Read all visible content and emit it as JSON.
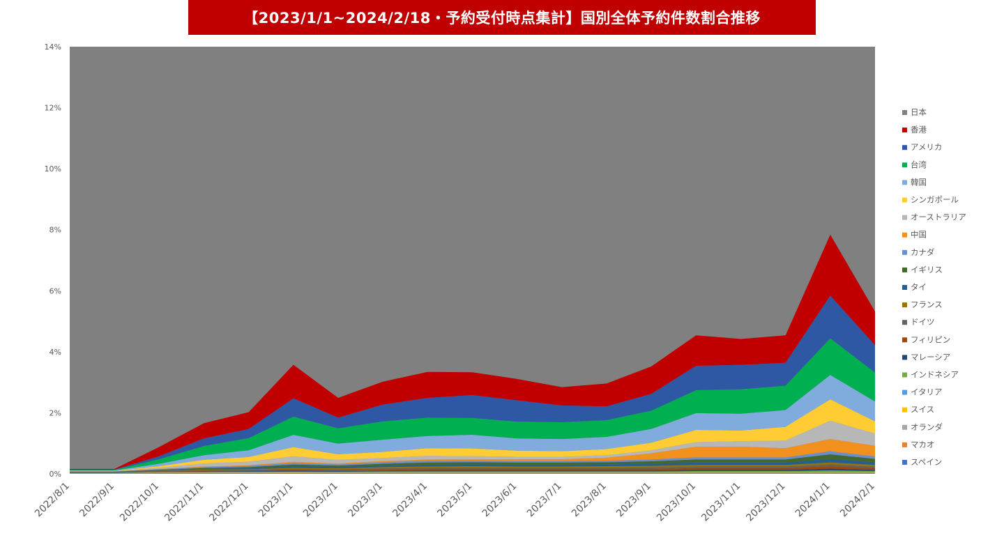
{
  "chart_data": {
    "type": "area",
    "stacked": true,
    "title": "【2023/1/1~2024/2/18・予約受付時点集計】国別全体予約件数割合推移",
    "xlabel": "",
    "ylabel": "",
    "x": [
      "2022/8/1",
      "2022/9/1",
      "2022/10/1",
      "2022/11/1",
      "2022/12/1",
      "2023/1/1",
      "2023/2/1",
      "2023/3/1",
      "2023/4/1",
      "2023/5/1",
      "2023/6/1",
      "2023/7/1",
      "2023/8/1",
      "2023/9/1",
      "2023/10/1",
      "2023/11/1",
      "2023/12/1",
      "2024/1/1",
      "2024/2/1"
    ],
    "ylim": [
      0,
      14
    ],
    "yticks": [
      "0%",
      "2%",
      "4%",
      "6%",
      "8%",
      "10%",
      "12%",
      "14%"
    ],
    "legend_position": "right",
    "grid": false,
    "top_series": {
      "name": "日本",
      "color": "#808080"
    },
    "series": [
      {
        "name": "スペイン",
        "color": "#4472c4",
        "values": [
          0.005,
          0.005,
          0.01,
          0.01,
          0.01,
          0.01,
          0.01,
          0.01,
          0.01,
          0.01,
          0.01,
          0.01,
          0.01,
          0.01,
          0.01,
          0.01,
          0.01,
          0.01,
          0.01
        ]
      },
      {
        "name": "マカオ",
        "color": "#ed7d31",
        "values": [
          0.005,
          0.005,
          0.01,
          0.01,
          0.01,
          0.015,
          0.01,
          0.01,
          0.01,
          0.01,
          0.01,
          0.01,
          0.01,
          0.01,
          0.01,
          0.01,
          0.01,
          0.01,
          0.01
        ]
      },
      {
        "name": "オランダ",
        "color": "#a5a5a5",
        "values": [
          0.005,
          0.005,
          0.01,
          0.01,
          0.01,
          0.01,
          0.01,
          0.01,
          0.01,
          0.01,
          0.01,
          0.01,
          0.01,
          0.01,
          0.01,
          0.01,
          0.01,
          0.01,
          0.01
        ]
      },
      {
        "name": "スイス",
        "color": "#ffc000",
        "values": [
          0.005,
          0.005,
          0.01,
          0.01,
          0.01,
          0.01,
          0.01,
          0.01,
          0.01,
          0.01,
          0.01,
          0.01,
          0.01,
          0.01,
          0.01,
          0.01,
          0.01,
          0.01,
          0.01
        ]
      },
      {
        "name": "イタリア",
        "color": "#5b9bd5",
        "values": [
          0.005,
          0.005,
          0.01,
          0.01,
          0.01,
          0.01,
          0.01,
          0.01,
          0.01,
          0.01,
          0.01,
          0.01,
          0.01,
          0.01,
          0.01,
          0.01,
          0.01,
          0.01,
          0.01
        ]
      },
      {
        "name": "インドネシア",
        "color": "#70ad47",
        "values": [
          0.01,
          0.01,
          0.01,
          0.015,
          0.02,
          0.02,
          0.02,
          0.03,
          0.03,
          0.03,
          0.03,
          0.03,
          0.03,
          0.03,
          0.04,
          0.04,
          0.04,
          0.06,
          0.04
        ]
      },
      {
        "name": "マレーシア",
        "color": "#264478",
        "values": [
          0.01,
          0.01,
          0.01,
          0.015,
          0.02,
          0.03,
          0.02,
          0.02,
          0.03,
          0.03,
          0.03,
          0.03,
          0.03,
          0.03,
          0.04,
          0.04,
          0.04,
          0.06,
          0.04
        ]
      },
      {
        "name": "フィリピン",
        "color": "#9e480e",
        "values": [
          0.005,
          0.005,
          0.01,
          0.02,
          0.02,
          0.03,
          0.03,
          0.04,
          0.05,
          0.05,
          0.05,
          0.05,
          0.05,
          0.05,
          0.06,
          0.06,
          0.06,
          0.08,
          0.06
        ]
      },
      {
        "name": "ドイツ",
        "color": "#636363",
        "values": [
          0.005,
          0.005,
          0.01,
          0.02,
          0.02,
          0.03,
          0.03,
          0.04,
          0.04,
          0.04,
          0.04,
          0.04,
          0.04,
          0.05,
          0.05,
          0.05,
          0.05,
          0.06,
          0.05
        ]
      },
      {
        "name": "フランス",
        "color": "#997300",
        "values": [
          0.005,
          0.005,
          0.01,
          0.02,
          0.02,
          0.03,
          0.03,
          0.04,
          0.04,
          0.05,
          0.04,
          0.04,
          0.05,
          0.05,
          0.05,
          0.05,
          0.05,
          0.06,
          0.05
        ]
      },
      {
        "name": "タイ",
        "color": "#255e91",
        "values": [
          0.005,
          0.005,
          0.01,
          0.02,
          0.03,
          0.05,
          0.04,
          0.05,
          0.06,
          0.06,
          0.06,
          0.06,
          0.06,
          0.07,
          0.08,
          0.08,
          0.08,
          0.12,
          0.09
        ]
      },
      {
        "name": "イギリス",
        "color": "#43682b",
        "values": [
          0.005,
          0.005,
          0.02,
          0.03,
          0.04,
          0.06,
          0.05,
          0.06,
          0.07,
          0.07,
          0.07,
          0.07,
          0.07,
          0.08,
          0.1,
          0.1,
          0.1,
          0.15,
          0.11
        ]
      },
      {
        "name": "カナダ",
        "color": "#698ed0",
        "values": [
          0.005,
          0.005,
          0.02,
          0.03,
          0.04,
          0.05,
          0.04,
          0.05,
          0.06,
          0.05,
          0.05,
          0.05,
          0.05,
          0.06,
          0.07,
          0.07,
          0.07,
          0.1,
          0.08
        ]
      },
      {
        "name": "中国",
        "color": "#f1901c",
        "values": [
          0.005,
          0.005,
          0.01,
          0.02,
          0.02,
          0.04,
          0.03,
          0.04,
          0.04,
          0.05,
          0.06,
          0.06,
          0.1,
          0.2,
          0.35,
          0.35,
          0.3,
          0.4,
          0.35
        ]
      },
      {
        "name": "オーストラリア",
        "color": "#b7b7b7",
        "values": [
          0.01,
          0.01,
          0.04,
          0.1,
          0.12,
          0.18,
          0.12,
          0.1,
          0.12,
          0.1,
          0.08,
          0.08,
          0.08,
          0.1,
          0.15,
          0.18,
          0.25,
          0.6,
          0.4
        ]
      },
      {
        "name": "シンガポール",
        "color": "#ffcd33",
        "values": [
          0.01,
          0.01,
          0.05,
          0.12,
          0.15,
          0.3,
          0.18,
          0.2,
          0.25,
          0.25,
          0.2,
          0.18,
          0.2,
          0.25,
          0.4,
          0.35,
          0.45,
          0.7,
          0.4
        ]
      },
      {
        "name": "韓国",
        "color": "#7fabdd",
        "values": [
          0.01,
          0.01,
          0.08,
          0.15,
          0.22,
          0.4,
          0.35,
          0.4,
          0.4,
          0.45,
          0.4,
          0.4,
          0.4,
          0.45,
          0.55,
          0.55,
          0.55,
          0.8,
          0.65
        ]
      },
      {
        "name": "台湾",
        "color": "#00b050",
        "values": [
          0.02,
          0.02,
          0.15,
          0.3,
          0.4,
          0.6,
          0.5,
          0.6,
          0.6,
          0.55,
          0.55,
          0.55,
          0.55,
          0.6,
          0.75,
          0.8,
          0.8,
          1.2,
          0.95
        ]
      },
      {
        "name": "アメリカ",
        "color": "#2e57a4",
        "values": [
          0.01,
          0.01,
          0.1,
          0.25,
          0.3,
          0.6,
          0.35,
          0.55,
          0.65,
          0.75,
          0.7,
          0.55,
          0.45,
          0.55,
          0.8,
          0.8,
          0.75,
          1.4,
          0.9
        ]
      },
      {
        "name": "香港",
        "color": "#c00000",
        "values": [
          0.02,
          0.02,
          0.3,
          0.5,
          0.55,
          1.1,
          0.65,
          0.75,
          0.85,
          0.75,
          0.7,
          0.6,
          0.75,
          0.9,
          1.0,
          0.85,
          0.9,
          2.0,
          1.1
        ]
      }
    ]
  }
}
